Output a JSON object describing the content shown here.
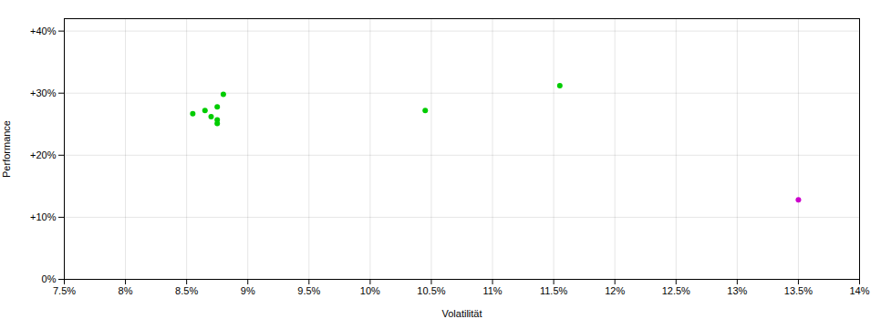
{
  "chart_data": {
    "type": "scatter",
    "xlabel": "Volatilität",
    "ylabel": "Performance",
    "xlim": [
      0.075,
      0.14
    ],
    "ylim": [
      0.0,
      0.42
    ],
    "xticks": [
      {
        "value": 0.075,
        "label": "7.5%"
      },
      {
        "value": 0.08,
        "label": "8%"
      },
      {
        "value": 0.085,
        "label": "8.5%"
      },
      {
        "value": 0.09,
        "label": "9%"
      },
      {
        "value": 0.095,
        "label": "9.5%"
      },
      {
        "value": 0.1,
        "label": "10%"
      },
      {
        "value": 0.105,
        "label": "10.5%"
      },
      {
        "value": 0.11,
        "label": "11%"
      },
      {
        "value": 0.115,
        "label": "11.5%"
      },
      {
        "value": 0.12,
        "label": "12%"
      },
      {
        "value": 0.125,
        "label": "12.5%"
      },
      {
        "value": 0.13,
        "label": "13%"
      },
      {
        "value": 0.135,
        "label": "13.5%"
      },
      {
        "value": 0.14,
        "label": "14%"
      }
    ],
    "yticks": [
      {
        "value": 0.0,
        "label": "0%"
      },
      {
        "value": 0.1,
        "label": "+10%"
      },
      {
        "value": 0.2,
        "label": "+20%"
      },
      {
        "value": 0.3,
        "label": "+30%"
      },
      {
        "value": 0.4,
        "label": "+40%"
      }
    ],
    "grid": true,
    "series": [
      {
        "color": "#00cc00",
        "x": [
          0.088,
          0.0875,
          0.0865,
          0.0855,
          0.087,
          0.0875,
          0.0875,
          0.1045,
          0.1155
        ],
        "values": [
          0.298,
          0.278,
          0.272,
          0.267,
          0.262,
          0.257,
          0.251,
          0.272,
          0.312
        ]
      },
      {
        "color": "#cc00cc",
        "x": [
          0.135
        ],
        "values": [
          0.128
        ]
      }
    ]
  }
}
